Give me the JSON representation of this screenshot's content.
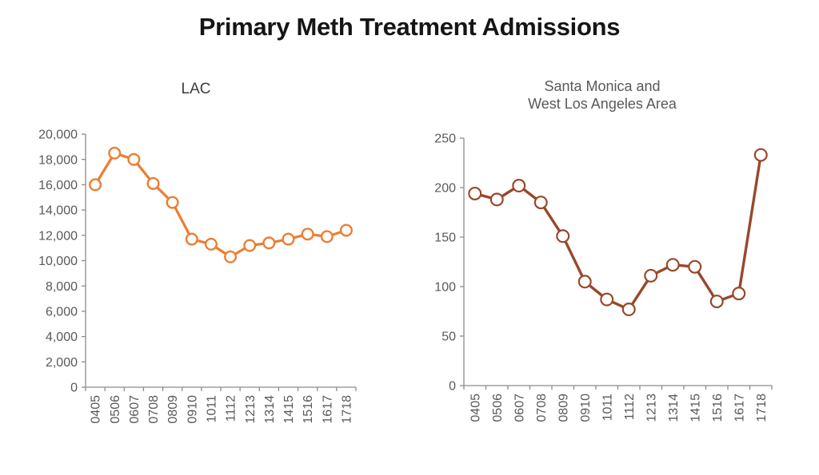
{
  "page_title": "Primary Meth Treatment Admissions",
  "chart_data": [
    {
      "type": "line",
      "title": "LAC",
      "title_lines": [
        "LAC"
      ],
      "categories": [
        "0405",
        "0506",
        "0607",
        "0708",
        "0809",
        "0910",
        "1011",
        "1112",
        "1213",
        "1314",
        "1415",
        "1516",
        "1617",
        "1718"
      ],
      "series": [
        {
          "name": "LAC",
          "values": [
            16000,
            18500,
            18000,
            16100,
            14600,
            11700,
            11300,
            10300,
            11200,
            11400,
            11700,
            12100,
            11900,
            12400
          ]
        }
      ],
      "xlabel": "",
      "ylabel": "",
      "ylim": [
        0,
        20000
      ],
      "ytick_step": 2000,
      "ytick_labels": [
        "0",
        "2,000",
        "4,000",
        "6,000",
        "8,000",
        "10,000",
        "12,000",
        "14,000",
        "16,000",
        "18,000",
        "20,000"
      ],
      "grid": false,
      "legend": "none",
      "marker_style": "open-circle",
      "line_color": "#ED7D31",
      "marker_fill": "#FFFFFF",
      "axis_color": "#8C8C8C",
      "tick_label_color": "#595959",
      "title_color": "#3D3D3D"
    },
    {
      "type": "line",
      "title": "Santa Monica and West Los Angeles Area",
      "title_lines": [
        "Santa Monica and",
        "West Los Angeles Area"
      ],
      "categories": [
        "0405",
        "0506",
        "0607",
        "0708",
        "0809",
        "0910",
        "1011",
        "1112",
        "1213",
        "1314",
        "1415",
        "1516",
        "1617",
        "1718"
      ],
      "series": [
        {
          "name": "Santa Monica and West Los Angeles Area",
          "values": [
            194,
            188,
            202,
            185,
            151,
            105,
            87,
            77,
            111,
            122,
            120,
            85,
            93,
            233
          ]
        }
      ],
      "xlabel": "",
      "ylabel": "",
      "ylim": [
        0,
        250
      ],
      "ytick_step": 50,
      "ytick_labels": [
        "0",
        "50",
        "100",
        "150",
        "200",
        "250"
      ],
      "grid": false,
      "legend": "none",
      "marker_style": "open-circle",
      "line_color": "#99482B",
      "marker_fill": "#FFFFFF",
      "axis_color": "#8C8C8C",
      "tick_label_color": "#595959",
      "title_color": "#595959"
    }
  ]
}
